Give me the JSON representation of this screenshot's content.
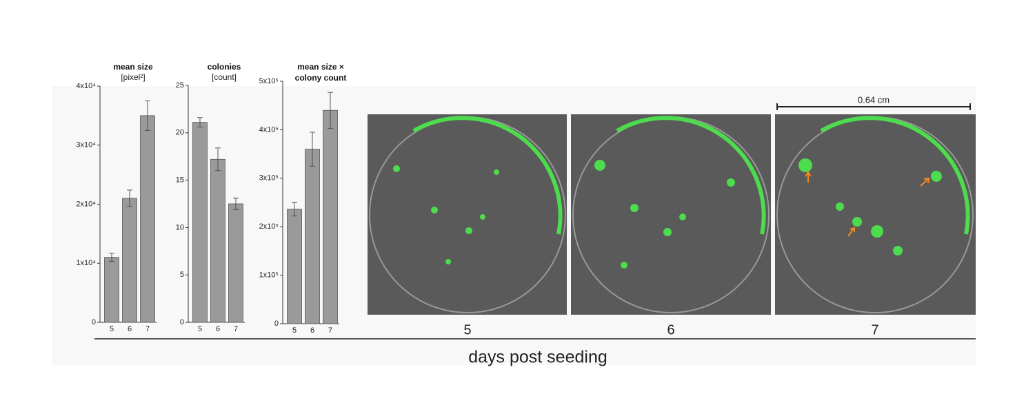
{
  "chart_data": [
    {
      "type": "bar",
      "title": "mean size",
      "subtitle": "[pixel²]",
      "categories": [
        "5",
        "6",
        "7"
      ],
      "values": [
        11000,
        21000,
        35000
      ],
      "errors": [
        700,
        1400,
        2500
      ],
      "color": "#9a9a9a",
      "ylim": [
        0,
        40000
      ],
      "yticks": [
        0,
        {
          "value": 10000,
          "label": "1x10⁴"
        },
        {
          "value": 20000,
          "label": "2x10⁴"
        },
        {
          "value": 30000,
          "label": "3x10⁴"
        },
        {
          "value": 40000,
          "label": "4x10⁴"
        }
      ]
    },
    {
      "type": "bar",
      "title": "colonies",
      "subtitle": "[count]",
      "categories": [
        "5",
        "6",
        "7"
      ],
      "values": [
        21.1,
        17.2,
        12.5
      ],
      "errors": [
        0.5,
        1.2,
        0.6
      ],
      "color": "#9a9a9a",
      "ylim": [
        0,
        25
      ],
      "yticks": [
        0,
        5,
        10,
        15,
        20,
        25
      ]
    },
    {
      "type": "bar",
      "title": "mean size × colony count",
      "categories": [
        "5",
        "6",
        "7"
      ],
      "values": [
        236000,
        360000,
        440000
      ],
      "errors": [
        14000,
        35000,
        37000
      ],
      "color": "#9a9a9a",
      "ylim": [
        0,
        500000
      ],
      "yticks": [
        0,
        {
          "value": 100000,
          "label": "1x10⁵"
        },
        {
          "value": 200000,
          "label": "2x10⁵"
        },
        {
          "value": 300000,
          "label": "3x10⁵"
        },
        {
          "value": 400000,
          "label": "4x10⁵"
        },
        {
          "value": 500000,
          "label": "5x10⁵"
        }
      ]
    }
  ],
  "images": {
    "labels": [
      "5",
      "6",
      "7"
    ],
    "scale_bar": "0.64 cm"
  },
  "xlabel": "days post seeding"
}
